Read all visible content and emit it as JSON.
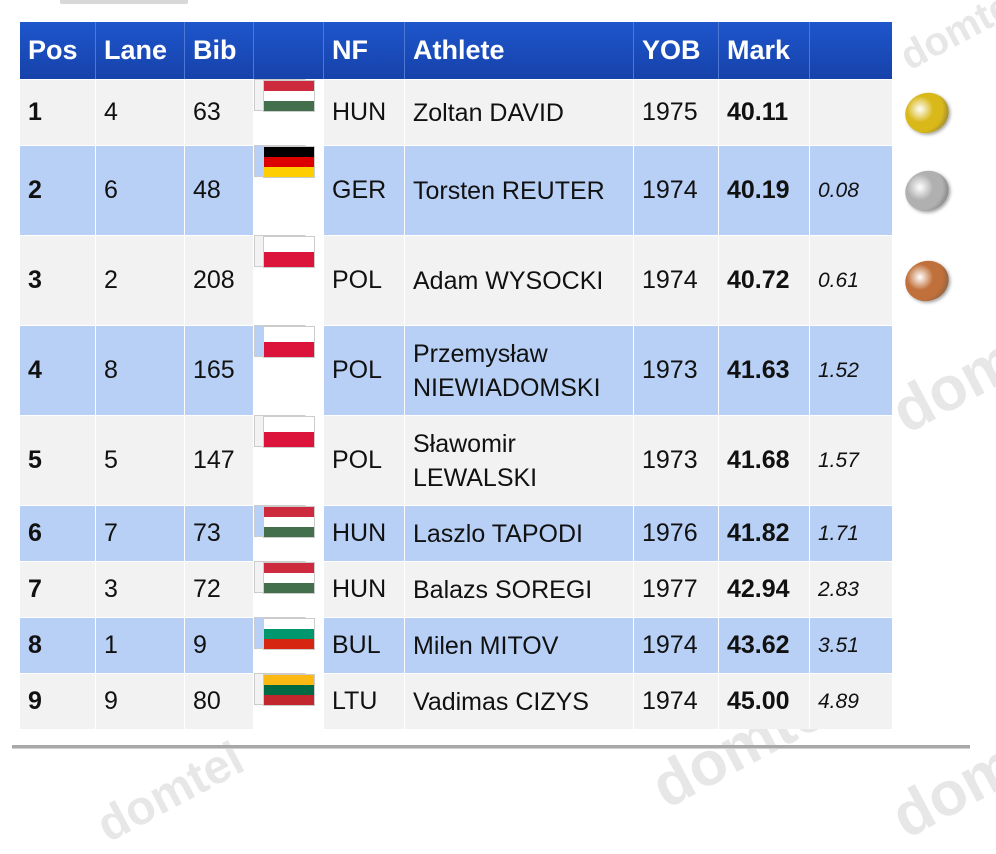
{
  "table": {
    "headers": {
      "pos": "Pos",
      "lane": "Lane",
      "bib": "Bib",
      "flag": "",
      "nf": "NF",
      "athlete": "Athlete",
      "yob": "YOB",
      "mark": "Mark",
      "gap": ""
    },
    "rows": [
      {
        "pos": "1",
        "lane": "4",
        "bib": "63",
        "nf": "HUN",
        "athlete": "Zoltan DAVID",
        "yob": "1975",
        "mark": "40.11",
        "gap": "",
        "flag": [
          "#cd2a3e",
          "#ffffff",
          "#436f4d"
        ],
        "medal": "gold-medal-icon"
      },
      {
        "pos": "2",
        "lane": "6",
        "bib": "48",
        "nf": "GER",
        "athlete": "Torsten REUTER",
        "yob": "1974",
        "mark": "40.19",
        "gap": "0.08",
        "flag": [
          "#000000",
          "#dd0000",
          "#ffce00"
        ],
        "medal": "silver-medal-icon"
      },
      {
        "pos": "3",
        "lane": "2",
        "bib": "208",
        "nf": "POL",
        "athlete": "Adam WYSOCKI",
        "yob": "1974",
        "mark": "40.72",
        "gap": "0.61",
        "flag": [
          "#ffffff",
          "#dc143c"
        ],
        "medal": "bronze-medal-icon"
      },
      {
        "pos": "4",
        "lane": "8",
        "bib": "165",
        "nf": "POL",
        "athlete": "Przemysław NIEWIADOMSKI",
        "yob": "1973",
        "mark": "41.63",
        "gap": "1.52",
        "flag": [
          "#ffffff",
          "#dc143c"
        ],
        "medal": ""
      },
      {
        "pos": "5",
        "lane": "5",
        "bib": "147",
        "nf": "POL",
        "athlete": "Sławomir LEWALSKI",
        "yob": "1973",
        "mark": "41.68",
        "gap": "1.57",
        "flag": [
          "#ffffff",
          "#dc143c"
        ],
        "medal": ""
      },
      {
        "pos": "6",
        "lane": "7",
        "bib": "73",
        "nf": "HUN",
        "athlete": "Laszlo TAPODI",
        "yob": "1976",
        "mark": "41.82",
        "gap": "1.71",
        "flag": [
          "#cd2a3e",
          "#ffffff",
          "#436f4d"
        ],
        "medal": ""
      },
      {
        "pos": "7",
        "lane": "3",
        "bib": "72",
        "nf": "HUN",
        "athlete": "Balazs SOREGI",
        "yob": "1977",
        "mark": "42.94",
        "gap": "2.83",
        "flag": [
          "#cd2a3e",
          "#ffffff",
          "#436f4d"
        ],
        "medal": ""
      },
      {
        "pos": "8",
        "lane": "1",
        "bib": "9",
        "nf": "BUL",
        "athlete": "Milen MITOV",
        "yob": "1974",
        "mark": "43.62",
        "gap": "3.51",
        "flag": [
          "#ffffff",
          "#00966e",
          "#d62612"
        ],
        "medal": ""
      },
      {
        "pos": "9",
        "lane": "9",
        "bib": "80",
        "nf": "LTU",
        "athlete": "Vadimas CIZYS",
        "yob": "1974",
        "mark": "45.00",
        "gap": "4.89",
        "flag": [
          "#fdb913",
          "#006a44",
          "#c1272d"
        ],
        "medal": ""
      }
    ]
  },
  "watermark": "domtel",
  "medal_colors": {
    "gold-medal-icon": "#d9b81a",
    "silver-medal-icon": "#b0b0b0",
    "bronze-medal-icon": "#c0703a"
  }
}
